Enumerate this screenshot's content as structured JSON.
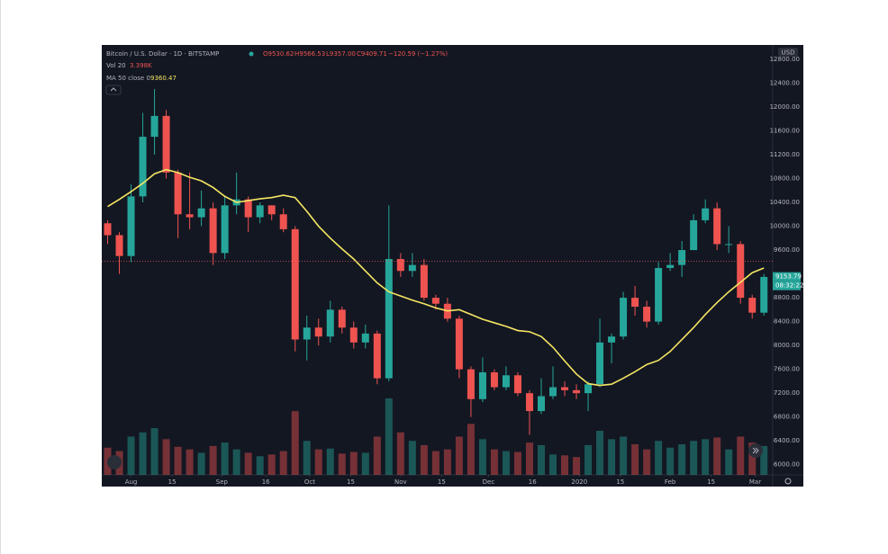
{
  "chart_data": {
    "type": "candlestick",
    "title": "Bitcoin / U.S. Dollar · 1D · BITSTAMP",
    "ohlc_legend": [
      "O9530.62",
      "H9566.53",
      "L9357.00",
      "C9409.71",
      "−120.59 (−1.27%)"
    ],
    "volume_legend": {
      "name": "Vol 20",
      "value_label": "3.398K"
    },
    "currency": "USD",
    "countdown": "08:32:22",
    "last_price": 9153.79,
    "price_line": 9410,
    "up_color": "#26a69a",
    "down_color": "#ef5350",
    "x": [
      2,
      6,
      10,
      14,
      18,
      22,
      26,
      30,
      34,
      38,
      42,
      46,
      50,
      54,
      58,
      62,
      66,
      70,
      74,
      78,
      82,
      86,
      90,
      94,
      98,
      102,
      106,
      110,
      114,
      118,
      122,
      126,
      130,
      134,
      138,
      142,
      146,
      150,
      154,
      158,
      162,
      166,
      170,
      174,
      178,
      182,
      186,
      190,
      194,
      198,
      202,
      206,
      210,
      214,
      218,
      222,
      226
    ],
    "open": [
      10050,
      9850,
      9500,
      10500,
      11500,
      11850,
      10900,
      10200,
      10150,
      10300,
      9550,
      10350,
      10450,
      10150,
      10350,
      10200,
      9950,
      8100,
      8300,
      8150,
      8600,
      8300,
      8050,
      8200,
      7450,
      9450,
      9250,
      9350,
      8800,
      8700,
      8450,
      7600,
      7100,
      7550,
      7300,
      7500,
      7200,
      6900,
      7150,
      7300,
      7250,
      7200,
      7350,
      8050,
      8150,
      8800,
      8650,
      8400,
      9300,
      9350,
      9600,
      10100,
      10300,
      9700,
      9700,
      8800,
      8550
    ],
    "high": [
      10100,
      9900,
      10700,
      11900,
      12300,
      11950,
      10950,
      10900,
      10600,
      10400,
      10500,
      10900,
      10500,
      10400,
      10350,
      10300,
      10000,
      8500,
      8450,
      8750,
      8650,
      8400,
      8350,
      8250,
      10350,
      9550,
      9550,
      9450,
      8850,
      8800,
      8500,
      7650,
      7800,
      7600,
      7650,
      7550,
      7250,
      7450,
      7650,
      7400,
      7350,
      7400,
      8450,
      8200,
      8900,
      9000,
      8750,
      9400,
      9550,
      9750,
      10200,
      10450,
      10400,
      10000,
      9750,
      8850,
      9200
    ],
    "low": [
      9700,
      9200,
      9400,
      10400,
      11200,
      10800,
      9800,
      9950,
      10000,
      9350,
      9450,
      10200,
      9900,
      10050,
      10100,
      9900,
      7900,
      7750,
      8000,
      8050,
      8200,
      7950,
      7950,
      7350,
      7400,
      9150,
      9150,
      8750,
      8600,
      8400,
      7450,
      6800,
      7050,
      7250,
      7250,
      7150,
      6500,
      6850,
      7100,
      7150,
      7100,
      6900,
      7300,
      7700,
      8100,
      8500,
      8300,
      8350,
      9250,
      9150,
      9600,
      10050,
      9600,
      9550,
      8700,
      8450,
      8500
    ],
    "close": [
      9850,
      9500,
      10500,
      11500,
      11850,
      10900,
      10200,
      10150,
      10300,
      9550,
      10350,
      10450,
      10150,
      10350,
      10200,
      9950,
      8100,
      8300,
      8150,
      8600,
      8300,
      8050,
      8200,
      7450,
      9450,
      9250,
      9350,
      8800,
      8700,
      8450,
      7600,
      7100,
      7550,
      7300,
      7500,
      7200,
      6900,
      7150,
      7300,
      7250,
      7200,
      7350,
      8050,
      8150,
      8800,
      8650,
      8400,
      9300,
      9350,
      9600,
      10100,
      10300,
      9700,
      9700,
      8800,
      8550,
      9150
    ],
    "volume": [
      3.2,
      2.8,
      4.5,
      5.0,
      5.5,
      4.2,
      3.3,
      3.0,
      2.6,
      3.4,
      3.8,
      3.0,
      2.6,
      2.2,
      2.4,
      2.8,
      7.5,
      4.0,
      3.0,
      3.1,
      2.5,
      2.7,
      2.6,
      4.5,
      9.0,
      5.0,
      4.0,
      3.5,
      2.8,
      3.0,
      4.5,
      6.0,
      4.2,
      3.0,
      2.8,
      2.7,
      3.8,
      3.5,
      2.4,
      2.3,
      2.1,
      3.5,
      5.2,
      4.2,
      4.5,
      3.6,
      3.0,
      4.0,
      3.2,
      3.6,
      4.0,
      4.2,
      4.4,
      3.0,
      4.5,
      3.8,
      3.4
    ],
    "ma": {
      "name": "MA 50 close 0",
      "value_label": "9360.47",
      "color": "#f5e663",
      "values": [
        10330,
        10450,
        10580,
        10720,
        10880,
        10950,
        10900,
        10820,
        10760,
        10650,
        10500,
        10400,
        10430,
        10460,
        10480,
        10520,
        10480,
        10250,
        10000,
        9800,
        9620,
        9450,
        9250,
        9050,
        8900,
        8830,
        8760,
        8700,
        8630,
        8580,
        8600,
        8520,
        8440,
        8380,
        8320,
        8250,
        8230,
        8150,
        7970,
        7740,
        7520,
        7360,
        7330,
        7350,
        7450,
        7560,
        7680,
        7750,
        7900,
        8100,
        8300,
        8520,
        8720,
        8900,
        9060,
        9220,
        9300
      ]
    },
    "xlim": [
      0,
      229
    ],
    "xticks": [
      {
        "value": 10,
        "label": "Aug"
      },
      15,
      {
        "value": 41,
        "label": "Sep"
      },
      16,
      {
        "value": 71,
        "label": "Oct"
      },
      15,
      {
        "value": 102,
        "label": "Nov"
      },
      15,
      {
        "value": 132,
        "label": "Dec"
      },
      16,
      {
        "value": 163,
        "label": "2020"
      },
      15,
      {
        "value": 194,
        "label": "Feb"
      },
      15,
      {
        "value": 223,
        "label": "Mar"
      }
    ],
    "xtick_pos": [
      10,
      24,
      41,
      56,
      71,
      85,
      102,
      116,
      132,
      147,
      163,
      177,
      194,
      208,
      223
    ],
    "ylim": [
      5830,
      13040
    ],
    "yticks": [
      {
        "value": 6000,
        "label": "6000.00"
      },
      {
        "value": 6400,
        "label": "6400.00"
      },
      {
        "value": 6800,
        "label": "6800.00"
      },
      {
        "value": 7200,
        "label": "7200.00"
      },
      {
        "value": 7600,
        "label": "7600.00"
      },
      {
        "value": 8000,
        "label": "8000.00"
      },
      {
        "value": 8400,
        "label": "8400.00"
      },
      {
        "value": 8800,
        "label": "8800.00"
      },
      {
        "value": 9600,
        "label": "9600.00"
      },
      {
        "value": 10000,
        "label": "10000.00"
      },
      {
        "value": 10400,
        "label": "10400.00"
      },
      {
        "value": 10800,
        "label": "10800.00"
      },
      {
        "value": 11200,
        "label": "11200.00"
      },
      {
        "value": 11600,
        "label": "11600.00"
      },
      {
        "value": 12000,
        "label": "12000.00"
      },
      {
        "value": 12400,
        "label": "12400.00"
      },
      {
        "value": 12800,
        "label": "12800.00"
      }
    ],
    "grid": false
  }
}
